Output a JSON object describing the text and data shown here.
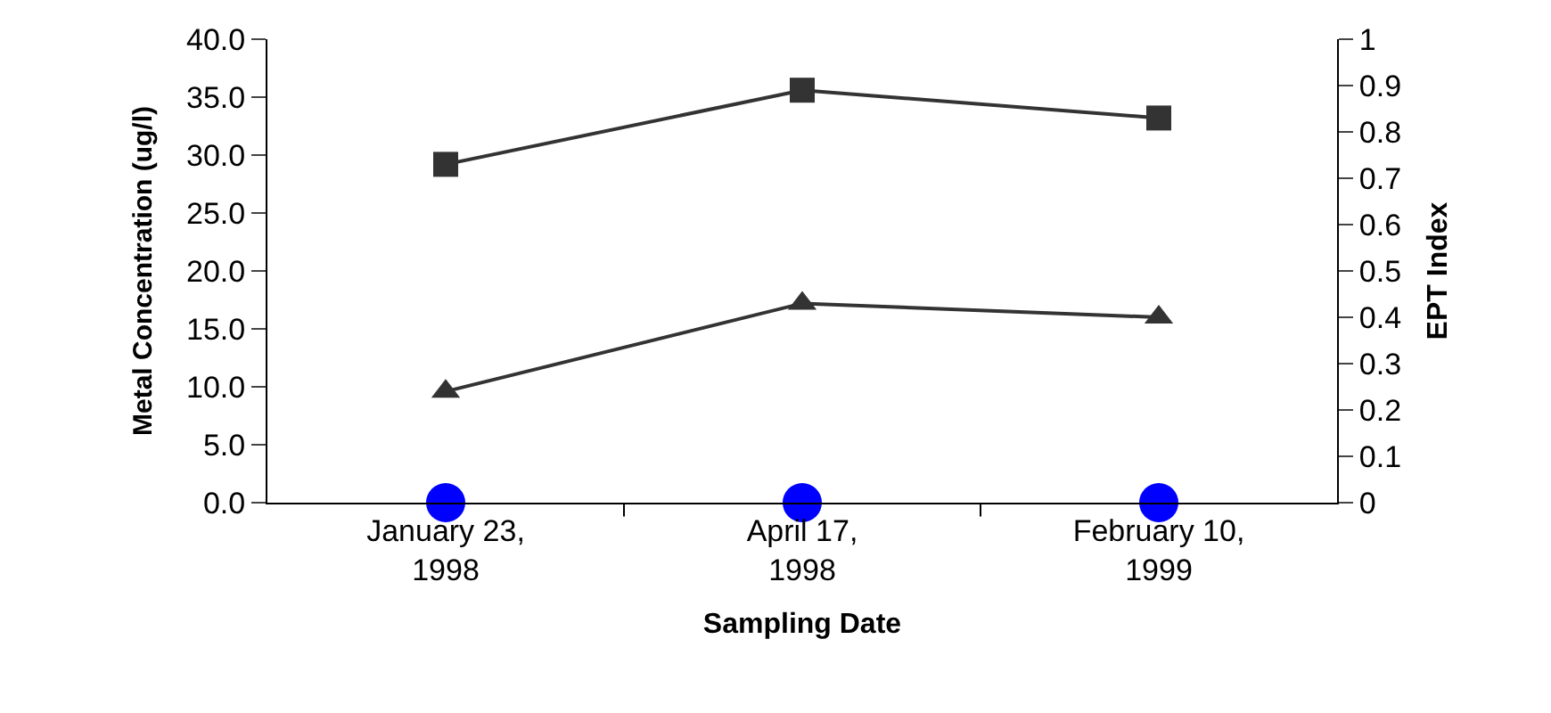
{
  "chart_data": {
    "type": "line",
    "xlabel": "Sampling Date",
    "ylabel": "Metal Concentration (ug/l)",
    "y2label": "EPT Index",
    "categories": [
      "January 23, 1998",
      "April 17, 1998",
      "February 10, 1999"
    ],
    "series": [
      {
        "color": "#333333",
        "marker": "square",
        "axis": "y2",
        "values": [
          0.73,
          0.89,
          0.83
        ]
      },
      {
        "color": "#333333",
        "marker": "triangle",
        "values": [
          9.6,
          17.2,
          16.0
        ]
      },
      {
        "type": "scatter",
        "color": "#0000ff",
        "marker": "circle",
        "values": [
          0,
          0,
          0
        ]
      }
    ],
    "ylim": [
      0,
      40
    ],
    "yticks": [
      {
        "value": 0,
        "label": "0.0"
      },
      {
        "value": 5,
        "label": "5.0"
      },
      {
        "value": 10,
        "label": "10.0"
      },
      {
        "value": 15,
        "label": "15.0"
      },
      {
        "value": 20,
        "label": "20.0"
      },
      {
        "value": 25,
        "label": "25.0"
      },
      {
        "value": 30,
        "label": "30.0"
      },
      {
        "value": 35,
        "label": "35.0"
      },
      {
        "value": 40,
        "label": "40.0"
      }
    ],
    "y2lim": [
      0,
      1
    ],
    "y2ticks": [
      0,
      0.1,
      0.2,
      0.3,
      0.4,
      0.5,
      0.6,
      0.7,
      0.8,
      0.9,
      1
    ]
  }
}
